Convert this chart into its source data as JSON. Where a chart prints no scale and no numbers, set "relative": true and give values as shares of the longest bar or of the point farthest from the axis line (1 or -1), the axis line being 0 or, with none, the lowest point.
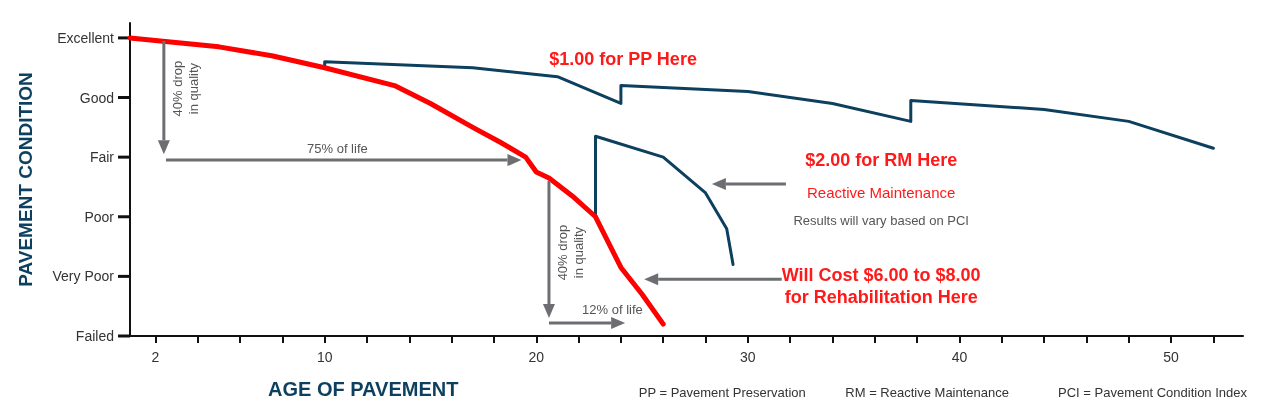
{
  "chart_data": {
    "type": "line",
    "xlabel": "AGE OF PAVEMENT",
    "ylabel": "PAVEMENT CONDITION",
    "relative": true,
    "xlim": [
      0.8,
      53.4
    ],
    "xticks": [
      2,
      {
        "value": 4,
        "label": null
      },
      {
        "value": 6,
        "label": null
      },
      {
        "value": 8,
        "label": null
      },
      10,
      {
        "value": 12,
        "label": null
      },
      {
        "value": 14,
        "label": null
      },
      {
        "value": 16,
        "label": null
      },
      {
        "value": 18,
        "label": null
      },
      20,
      {
        "value": 22,
        "label": null
      },
      {
        "value": 24,
        "label": null
      },
      {
        "value": 26,
        "label": null
      },
      {
        "value": 28,
        "label": null
      },
      30,
      {
        "value": 32,
        "label": null
      },
      {
        "value": 34,
        "label": null
      },
      {
        "value": 36,
        "label": null
      },
      {
        "value": 38,
        "label": null
      },
      40,
      {
        "value": 42,
        "label": null
      },
      {
        "value": 44,
        "label": null
      },
      {
        "value": 46,
        "label": null
      },
      {
        "value": 48,
        "label": null
      },
      50,
      {
        "value": 52,
        "label": null
      }
    ],
    "grid": false,
    "marker": "none",
    "line_style": "solid",
    "series": [
      {
        "color": "#ff0000",
        "x": [
          0.8,
          5,
          7.5,
          10,
          13.3,
          15,
          17,
          18.3,
          19.5,
          20,
          20.6,
          21.7,
          22.8,
          24,
          25,
          26
        ],
        "values": [
          1,
          0.97,
          0.94,
          0.9,
          0.84,
          0.78,
          0.7,
          0.65,
          0.6,
          0.55,
          0.53,
          0.47,
          0.4,
          0.23,
          0.14,
          0.04
        ]
      },
      {
        "color": "#0d3f5f",
        "x": [
          10,
          10,
          17,
          21,
          24,
          24,
          30,
          34,
          37.7,
          37.7,
          44,
          48,
          52
        ],
        "values": [
          0.9,
          0.92,
          0.9,
          0.87,
          0.78,
          0.84,
          0.82,
          0.78,
          0.72,
          0.79,
          0.76,
          0.72,
          0.63
        ]
      },
      {
        "color": "#0d3f5f",
        "x": [
          22.8,
          22.8,
          26,
          28,
          29,
          29.3
        ],
        "values": [
          0.4,
          0.67,
          0.6,
          0.48,
          0.36,
          0.24
        ]
      }
    ],
    "annotations": [
      "Excellent",
      "Good",
      "Fair",
      "Poor",
      "Very Poor",
      "Failed",
      "40% drop\nin quality",
      "75% of life",
      "40% drop\nin quality",
      "12% of life",
      "$1.00 for PP Here",
      "$2.00 for RM Here",
      "Reactive Maintenance",
      "Results will vary based on PCI",
      "Will Cost $6.00 to $8.00\nfor Rehabilitation Here",
      "PP = Pavement Preservation",
      "RM = Reactive Maintenance",
      "PCI = Pavement Condition Index"
    ]
  }
}
